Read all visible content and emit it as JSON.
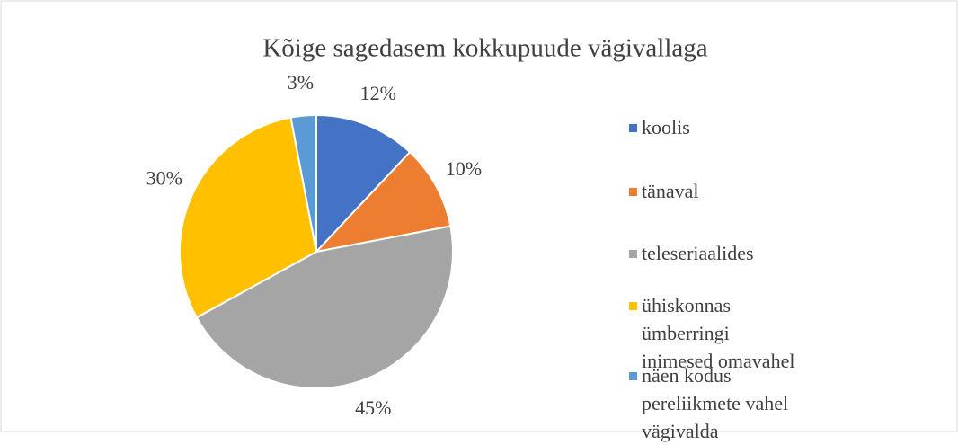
{
  "chart_data": {
    "type": "pie",
    "title": "Kõige sagedasem kokkupuude vägivallaga",
    "categories": [
      "koolis",
      "tänaval",
      "teleseriaalides",
      "ühiskonnas ümberringi inimesed omavahel",
      "näen kodus pereliikmete vahel vägivalda"
    ],
    "values": [
      12,
      10,
      45,
      30,
      3
    ],
    "colors": [
      "#4472c4",
      "#ed7d31",
      "#a5a5a5",
      "#ffc000",
      "#5b9bd5"
    ],
    "value_labels": [
      "12%",
      "10%",
      "45%",
      "30%",
      "3%"
    ],
    "legend": "right"
  }
}
